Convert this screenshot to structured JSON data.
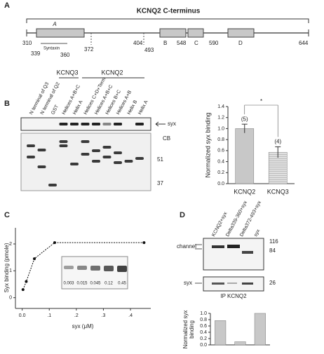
{
  "panel_labels": [
    "A",
    "B",
    "C",
    "D"
  ],
  "panel_a": {
    "title": "KCNQ2 C-terminus",
    "helices": [
      "A",
      "B",
      "C",
      "D"
    ],
    "syntaxin_label": "Syntaxin",
    "numbers": [
      "310",
      "339",
      "360",
      "372",
      "404",
      "493",
      "548",
      "590",
      "644"
    ]
  },
  "panel_b_blot": {
    "groups": [
      "KCNQ3",
      "KCNQ2"
    ],
    "lanes": [
      "N terminal of Q3",
      "N terminal of Q2",
      "GST",
      "Helices A+B+C",
      "Helix A",
      "Helices C+D+Term",
      "Helices A+B+C",
      "Helices B+C",
      "Helices A+B",
      "Helix B",
      "Helix A"
    ],
    "syx_label": "syx",
    "cb_label": "CB",
    "markers": [
      "51",
      "37"
    ]
  },
  "panel_d_blot": {
    "lanes": [
      "KCNQ2+syx",
      "Delta339-360+syx",
      "Delta372-493+syx",
      "syx"
    ],
    "channel_label": "channel",
    "syx_label": "syx",
    "markers": [
      "116",
      "84",
      "26"
    ],
    "ip_label": "IP KCNQ2"
  },
  "chart_data": [
    {
      "type": "bar",
      "y_label": "Normalized syx binding",
      "categories": [
        "KCNQ2",
        "KCNQ3"
      ],
      "values": [
        1.0,
        0.57
      ],
      "errors": [
        0.08,
        0.1
      ],
      "colors": [
        "#c8c8c8",
        "#e4e4e4"
      ],
      "hatched": [
        false,
        true
      ],
      "annotations": [
        "(5)",
        "(4)",
        "*"
      ],
      "ylim": [
        0,
        1.4
      ],
      "yticks": [
        {
          "value": 0,
          "label": "0.0"
        },
        0.2,
        0.4,
        0.6,
        0.8,
        {
          "value": 1,
          "label": "1.0"
        },
        1.2,
        1.4
      ]
    },
    {
      "type": "line",
      "x_label": "syx (μM)",
      "y_label": "Syx binding (pmole)",
      "x": [
        0.003,
        0.015,
        0.045,
        0.12,
        0.45
      ],
      "values": [
        0.3,
        0.6,
        1.45,
        2.05,
        2.05
      ],
      "color": "#111",
      "xlim": [
        -0.025,
        0.475
      ],
      "xticks": [
        {
          "value": 0,
          "label": "0.0"
        },
        {
          "value": 0.1,
          "label": ".1"
        },
        {
          "value": 0.2,
          "label": ".2"
        },
        {
          "value": 0.3,
          "label": ".3"
        },
        {
          "value": 0.4,
          "label": ".4"
        }
      ],
      "ylim": [
        -0.4,
        2.6
      ],
      "yticks": [
        0,
        1,
        2
      ]
    },
    {
      "type": "bar",
      "y_label": "Normalized syx binding",
      "categories": [
        null,
        null,
        null
      ],
      "values": [
        0.77,
        0.1,
        1.0
      ],
      "color": "#c8c8c8",
      "ylim": [
        0,
        1.0
      ],
      "yticks": [
        {
          "value": 0,
          "label": "0.0"
        },
        0.2,
        0.4,
        0.6,
        0.8,
        {
          "value": 1,
          "label": "1.0"
        }
      ]
    }
  ]
}
